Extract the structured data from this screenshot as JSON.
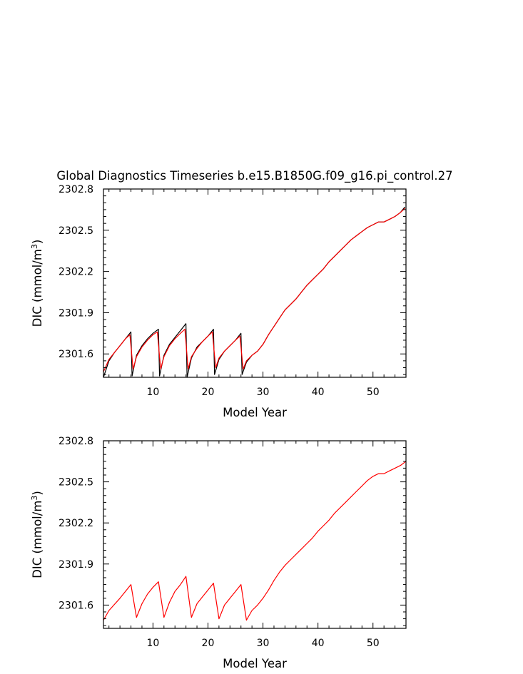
{
  "figure": {
    "title": "Global Diagnostics Timeseries b.e15.B1850G.f09_g16.pi_control.27"
  },
  "chart_data": [
    {
      "type": "line",
      "title": "Global Diagnostics Timeseries b.e15.B1850G.f09_g16.pi_control.27",
      "xlabel": "Model Year",
      "ylabel": "DIC (mmol/m³)",
      "ylabel_text": "DIC (mmol/m",
      "ylabel_sup": "3",
      "ylabel_close": ")",
      "xlim": [
        1,
        56
      ],
      "ylim": [
        2301.43,
        2302.8
      ],
      "xticks": [
        10,
        20,
        30,
        40,
        50
      ],
      "xtick_labels": [
        "10",
        "20",
        "30",
        "40",
        "50"
      ],
      "yticks": [
        2301.6,
        2301.9,
        2302.2,
        2302.5,
        2302.8
      ],
      "ytick_labels": [
        "2301.6",
        "2301.9",
        "2302.2",
        "2302.5",
        "2302.8"
      ],
      "series": [
        {
          "color": "#000000",
          "x": [
            1,
            2,
            3,
            4,
            5,
            6,
            6.2,
            7,
            8,
            9,
            10,
            11,
            11.2,
            12,
            13,
            14,
            15,
            16,
            16.2,
            17,
            18,
            19,
            20,
            21,
            21.2,
            22,
            23,
            24,
            25,
            26,
            26.2,
            27,
            28,
            29,
            30,
            31,
            32,
            33,
            34,
            35,
            36,
            37,
            38,
            39,
            40,
            41,
            42,
            43,
            44,
            45,
            46,
            47,
            48,
            49,
            50,
            51,
            52,
            53,
            54,
            55,
            55.8
          ],
          "y": [
            2301.43,
            2301.55,
            2301.61,
            2301.66,
            2301.71,
            2301.76,
            2301.44,
            2301.59,
            2301.66,
            2301.71,
            2301.75,
            2301.78,
            2301.44,
            2301.59,
            2301.67,
            2301.72,
            2301.77,
            2301.82,
            2301.43,
            2301.57,
            2301.65,
            2301.69,
            2301.73,
            2301.78,
            2301.45,
            2301.56,
            2301.62,
            2301.66,
            2301.7,
            2301.75,
            2301.45,
            2301.54,
            2301.59,
            2301.62,
            2301.67,
            2301.74,
            2301.8,
            2301.86,
            2301.92,
            2301.96,
            2302.0,
            2302.05,
            2302.1,
            2302.14,
            2302.18,
            2302.22,
            2302.27,
            2302.31,
            2302.35,
            2302.39,
            2302.43,
            2302.46,
            2302.49,
            2302.52,
            2302.54,
            2302.56,
            2302.56,
            2302.58,
            2302.6,
            2302.63,
            2302.67
          ]
        },
        {
          "color": "#ff0000",
          "x": [
            1,
            2,
            3,
            4,
            5,
            5.8,
            6.4,
            7,
            8,
            9,
            10,
            10.8,
            11.4,
            12,
            13,
            14,
            15,
            15.8,
            16.4,
            17,
            18,
            19,
            20,
            20.8,
            21.4,
            22,
            23,
            24,
            25,
            25.8,
            26.4,
            27,
            28,
            29,
            30,
            31,
            32,
            33,
            34,
            35,
            36,
            37,
            38,
            39,
            40,
            41,
            42,
            43,
            44,
            45,
            46,
            47,
            48,
            49,
            50,
            51,
            52,
            53,
            54,
            55,
            55.8
          ],
          "y": [
            2301.47,
            2301.56,
            2301.61,
            2301.66,
            2301.71,
            2301.74,
            2301.49,
            2301.58,
            2301.65,
            2301.7,
            2301.74,
            2301.76,
            2301.49,
            2301.58,
            2301.66,
            2301.71,
            2301.75,
            2301.78,
            2301.49,
            2301.58,
            2301.64,
            2301.69,
            2301.73,
            2301.76,
            2301.5,
            2301.57,
            2301.62,
            2301.66,
            2301.7,
            2301.73,
            2301.49,
            2301.55,
            2301.59,
            2301.62,
            2301.67,
            2301.74,
            2301.8,
            2301.86,
            2301.92,
            2301.96,
            2302.0,
            2302.05,
            2302.1,
            2302.14,
            2302.18,
            2302.22,
            2302.27,
            2302.31,
            2302.35,
            2302.39,
            2302.43,
            2302.46,
            2302.49,
            2302.52,
            2302.54,
            2302.56,
            2302.56,
            2302.58,
            2302.6,
            2302.63,
            2302.66
          ]
        }
      ]
    },
    {
      "type": "line",
      "xlabel": "Model Year",
      "ylabel": "DIC (mmol/m³)",
      "ylabel_text": "DIC (mmol/m",
      "ylabel_sup": "3",
      "ylabel_close": ")",
      "xlim": [
        1,
        56
      ],
      "ylim": [
        2301.43,
        2302.8
      ],
      "xticks": [
        10,
        20,
        30,
        40,
        50
      ],
      "xtick_labels": [
        "10",
        "20",
        "30",
        "40",
        "50"
      ],
      "yticks": [
        2301.6,
        2301.9,
        2302.2,
        2302.5,
        2302.8
      ],
      "ytick_labels": [
        "2301.6",
        "2301.9",
        "2302.2",
        "2302.5",
        "2302.8"
      ],
      "series": [
        {
          "color": "#ff0000",
          "x": [
            1,
            2,
            4,
            6,
            7,
            8,
            9,
            10,
            11,
            12,
            13,
            14,
            15,
            16,
            17,
            18,
            19,
            20,
            21,
            22,
            23,
            24,
            25,
            26,
            27,
            28,
            29,
            30,
            31,
            32,
            33,
            34,
            35,
            36,
            37,
            38,
            39,
            40,
            41,
            42,
            43,
            44,
            45,
            46,
            47,
            48,
            49,
            50,
            51,
            52,
            53,
            54,
            55,
            56
          ],
          "y": [
            2301.49,
            2301.56,
            2301.65,
            2301.75,
            2301.51,
            2301.61,
            2301.68,
            2301.73,
            2301.77,
            2301.51,
            2301.62,
            2301.7,
            2301.75,
            2301.81,
            2301.51,
            2301.61,
            2301.66,
            2301.71,
            2301.76,
            2301.5,
            2301.6,
            2301.65,
            2301.7,
            2301.75,
            2301.49,
            2301.56,
            2301.6,
            2301.65,
            2301.71,
            2301.78,
            2301.84,
            2301.89,
            2301.93,
            2301.97,
            2302.01,
            2302.05,
            2302.09,
            2302.14,
            2302.18,
            2302.22,
            2302.27,
            2302.31,
            2302.35,
            2302.39,
            2302.43,
            2302.47,
            2302.51,
            2302.54,
            2302.56,
            2302.56,
            2302.58,
            2302.6,
            2302.62,
            2302.65
          ]
        }
      ]
    }
  ]
}
